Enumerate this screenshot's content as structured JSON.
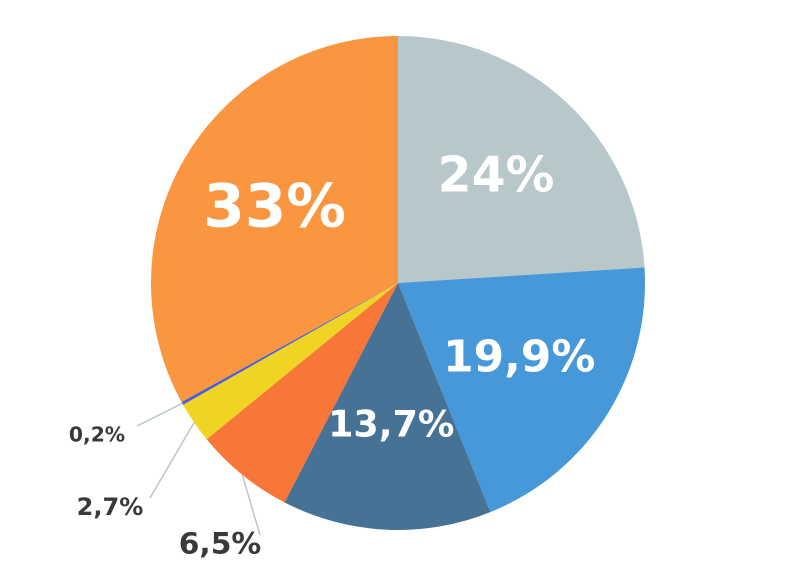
{
  "chart_data": {
    "type": "pie",
    "categories": null,
    "values": [
      24,
      19.9,
      13.7,
      6.5,
      2.7,
      0.2,
      33
    ],
    "value_labels": [
      "24%",
      "19,9%",
      "13,7%",
      "6,5%",
      "2,7%",
      "0,2%",
      "33%"
    ],
    "colors": [
      "#b8c7c9",
      "#4698d8",
      "#457295",
      "#f77638",
      "#f0d423",
      "#4a5fd6",
      "#f9963f"
    ]
  }
}
